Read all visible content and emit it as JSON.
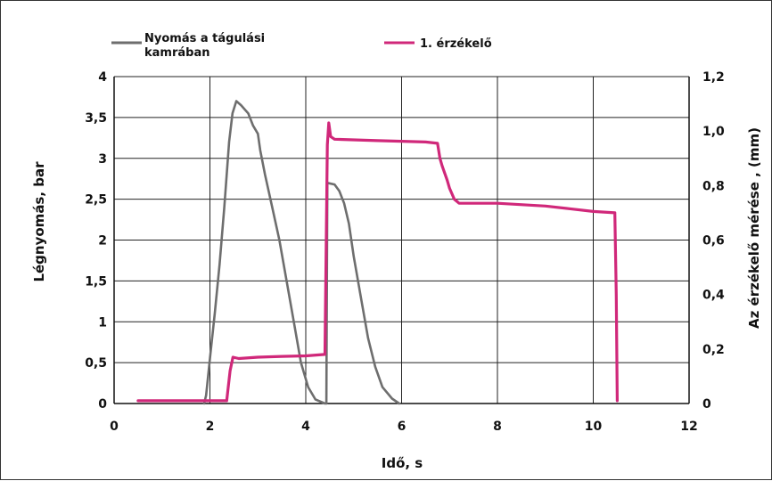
{
  "chart_data": {
    "type": "line",
    "xlabel": "Idő, s",
    "ylabel_left": "Légnyomás, bar",
    "ylabel_right": "Az érzékelő mérése , (mm)",
    "xlim": [
      0,
      12
    ],
    "ylim_left": [
      0,
      4
    ],
    "ylim_right": [
      0,
      1.2
    ],
    "x_ticks": [
      "0",
      "2",
      "4",
      "6",
      "8",
      "10",
      "12"
    ],
    "y_ticks_left": [
      "0",
      "0,5",
      "1",
      "1,5",
      "2",
      "2,5",
      "3",
      "3,5",
      "4"
    ],
    "y_ticks_right": [
      "0",
      "0,2",
      "0,4",
      "0,6",
      "0,8",
      "1,0",
      "1,2"
    ],
    "grid": true,
    "legend_position": "top",
    "series": [
      {
        "name": "Nyomás a tágulási kamrában",
        "axis": "left",
        "color": "#6e6e6e",
        "points": [
          [
            1.88,
            0.0
          ],
          [
            1.92,
            0.1
          ],
          [
            2.0,
            0.55
          ],
          [
            2.1,
            1.1
          ],
          [
            2.2,
            1.7
          ],
          [
            2.3,
            2.4
          ],
          [
            2.4,
            3.2
          ],
          [
            2.47,
            3.55
          ],
          [
            2.55,
            3.7
          ],
          [
            2.65,
            3.65
          ],
          [
            2.8,
            3.55
          ],
          [
            2.9,
            3.4
          ],
          [
            3.0,
            3.3
          ],
          [
            3.05,
            3.1
          ],
          [
            3.15,
            2.8
          ],
          [
            3.3,
            2.4
          ],
          [
            3.45,
            2.0
          ],
          [
            3.6,
            1.5
          ],
          [
            3.75,
            1.0
          ],
          [
            3.9,
            0.5
          ],
          [
            4.05,
            0.2
          ],
          [
            4.2,
            0.05
          ],
          [
            4.4,
            0.0
          ],
          [
            4.43,
            0.0
          ],
          [
            4.45,
            2.7
          ],
          [
            4.6,
            2.68
          ],
          [
            4.7,
            2.6
          ],
          [
            4.8,
            2.45
          ],
          [
            4.9,
            2.2
          ],
          [
            5.0,
            1.8
          ],
          [
            5.15,
            1.3
          ],
          [
            5.3,
            0.8
          ],
          [
            5.45,
            0.45
          ],
          [
            5.6,
            0.2
          ],
          [
            5.8,
            0.06
          ],
          [
            5.95,
            0.0
          ]
        ]
      },
      {
        "name": "1. érzékelő",
        "axis": "right",
        "color": "#d0287a",
        "points": [
          [
            0.5,
            0.01
          ],
          [
            2.35,
            0.01
          ],
          [
            2.42,
            0.12
          ],
          [
            2.48,
            0.17
          ],
          [
            2.6,
            0.165
          ],
          [
            3.0,
            0.17
          ],
          [
            3.5,
            0.173
          ],
          [
            4.0,
            0.175
          ],
          [
            4.4,
            0.18
          ],
          [
            4.45,
            0.95
          ],
          [
            4.48,
            1.03
          ],
          [
            4.52,
            0.98
          ],
          [
            4.6,
            0.97
          ],
          [
            5.5,
            0.965
          ],
          [
            6.5,
            0.96
          ],
          [
            6.75,
            0.955
          ],
          [
            6.8,
            0.9
          ],
          [
            6.85,
            0.87
          ],
          [
            6.95,
            0.82
          ],
          [
            7.0,
            0.79
          ],
          [
            7.1,
            0.75
          ],
          [
            7.2,
            0.735
          ],
          [
            8.0,
            0.735
          ],
          [
            9.0,
            0.725
          ],
          [
            9.5,
            0.715
          ],
          [
            10.0,
            0.705
          ],
          [
            10.45,
            0.7
          ],
          [
            10.48,
            0.4
          ],
          [
            10.5,
            0.01
          ]
        ]
      }
    ]
  }
}
